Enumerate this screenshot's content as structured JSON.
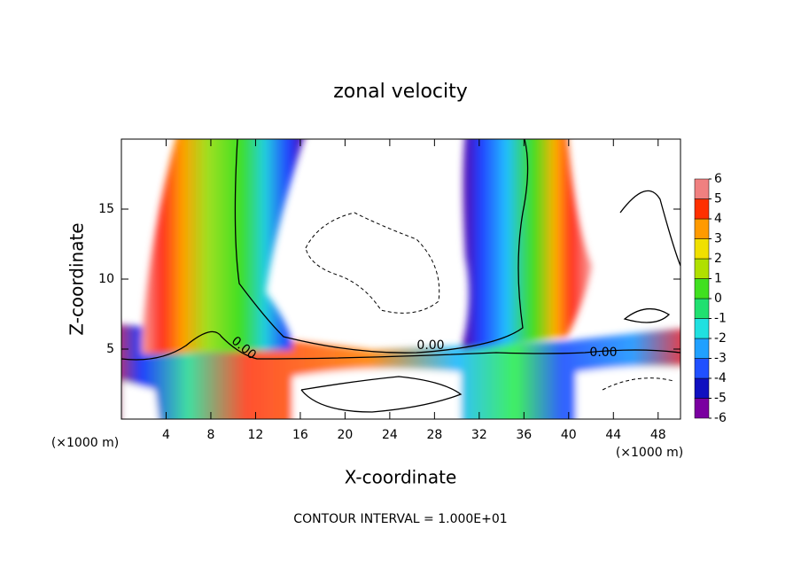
{
  "chart_data": {
    "type": "contour",
    "title": "zonal velocity",
    "x_label": "X-coordinate",
    "y_label": "Z-coordinate",
    "x_unit": "(×1000 m)",
    "y_unit": "(×1000 m)",
    "xlim": [
      0,
      50
    ],
    "ylim": [
      0,
      20
    ],
    "xticks": [
      4,
      8,
      12,
      16,
      20,
      24,
      28,
      32,
      36,
      40,
      44,
      48
    ],
    "yticks": [
      5,
      10,
      15
    ],
    "contour_labels": [
      "0.00",
      "0.00",
      "0.00"
    ],
    "footnote": "CONTOUR INTERVAL = 1.000E+01",
    "colorbar": {
      "ticks": [
        -6,
        -5,
        -4,
        -3,
        -2,
        -1,
        0,
        1,
        2,
        3,
        4,
        5,
        6
      ],
      "colors": [
        "#7a00a0",
        "#1010c0",
        "#2050ff",
        "#20a0ff",
        "#20e0e0",
        "#20e070",
        "#40e020",
        "#b0e000",
        "#f0e000",
        "#ff9a00",
        "#ff3000",
        "#f08080"
      ]
    }
  }
}
